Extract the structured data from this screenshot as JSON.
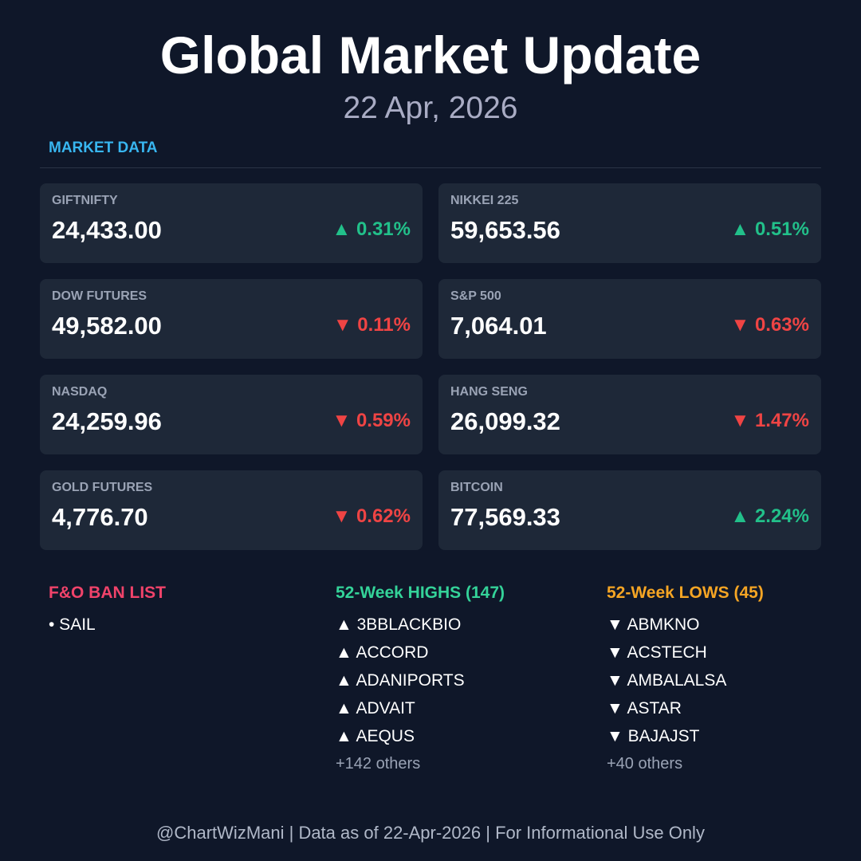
{
  "header": {
    "title": "Global Market Update",
    "date": "22 Apr, 2026",
    "section": "MARKET DATA"
  },
  "cards": [
    {
      "label": "GIFTNIFTY",
      "value": "24,433.00",
      "change": "▲ 0.31%",
      "color": "#22c08a"
    },
    {
      "label": "NIKKEI 225",
      "value": "59,653.56",
      "change": "▲ 0.51%",
      "color": "#22c08a"
    },
    {
      "label": "DOW FUTURES",
      "value": "49,582.00",
      "change": "▼ 0.11%",
      "color": "#ef4444"
    },
    {
      "label": "S&P 500",
      "value": "7,064.01",
      "change": "▼ 0.63%",
      "color": "#ef4444"
    },
    {
      "label": "NASDAQ",
      "value": "24,259.96",
      "change": "▼ 0.59%",
      "color": "#ef4444"
    },
    {
      "label": "HANG SENG",
      "value": "26,099.32",
      "change": "▼ 1.47%",
      "color": "#ef4444"
    },
    {
      "label": "GOLD FUTURES",
      "value": "4,776.70",
      "change": "▼ 0.62%",
      "color": "#ef4444"
    },
    {
      "label": "BITCOIN",
      "value": "77,569.33",
      "change": "▲ 2.24%",
      "color": "#22c08a"
    }
  ],
  "lists": [
    {
      "title": "F&O BAN LIST",
      "color": "#f0436a",
      "items": [
        "• SAIL"
      ]
    },
    {
      "title": "52-Week HIGHS (147)",
      "color": "#34d399",
      "items": [
        "▲ 3BBLACKBIO",
        "▲ ACCORD",
        "▲ ADANIPORTS",
        "▲ ADVAIT",
        "▲ AEQUS"
      ],
      "more": "+142 others"
    },
    {
      "title": "52-Week LOWS (45)",
      "color": "#f5a524",
      "items": [
        "▼ ABMKNO",
        "▼ ACSTECH",
        "▼ AMBALALSA",
        "▼ ASTAR",
        "▼ BAJAJST"
      ],
      "more": "+40 others"
    }
  ],
  "footer": "@ChartWizMani | Data as of 22-Apr-2026 | For Informational Use Only"
}
